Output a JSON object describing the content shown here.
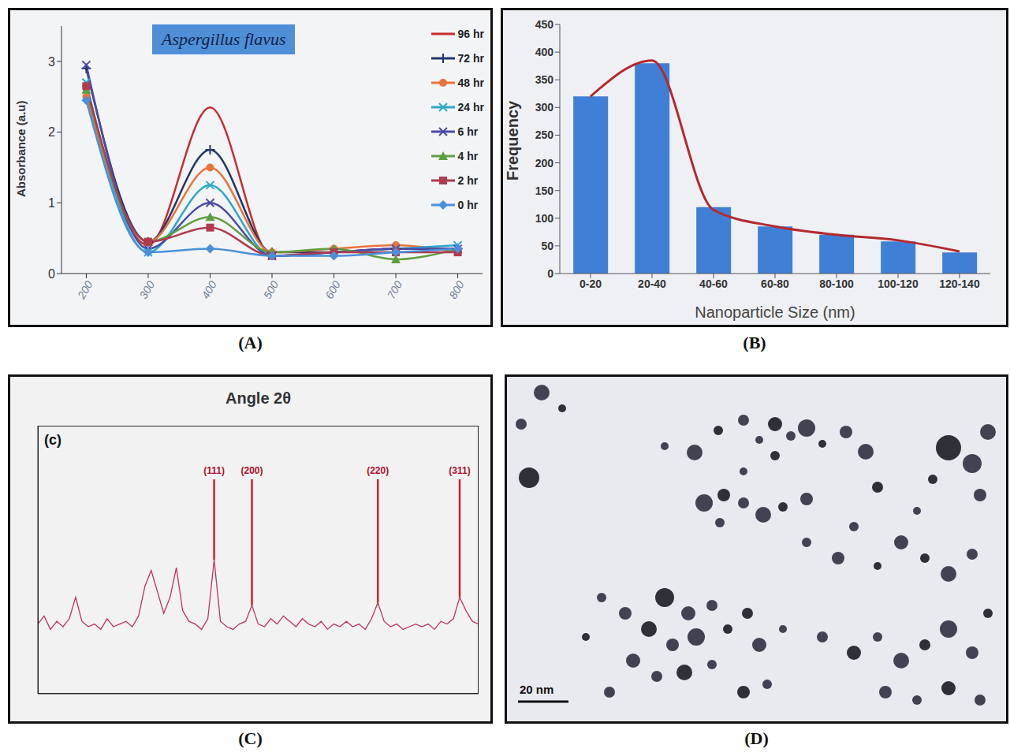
{
  "chart_data": [
    {
      "panel": "(A)",
      "type": "line",
      "title": "Aspergillus flavus",
      "ylabel": "Absorbance (a.u)",
      "x": [
        200,
        300,
        400,
        500,
        600,
        700,
        800
      ],
      "xlim": [
        160,
        840
      ],
      "xticks": [
        200,
        300,
        400,
        500,
        600,
        700,
        800
      ],
      "ylim": [
        0,
        3.5
      ],
      "yticks": [
        0,
        1,
        2,
        3
      ],
      "legend": "upper right",
      "series": [
        {
          "name": "96 hr",
          "color": "#c62f2f",
          "marker": "none",
          "values": [
            2.55,
            0.4,
            2.35,
            0.25,
            0.3,
            0.35,
            0.35
          ]
        },
        {
          "name": "72 hr",
          "color": "#22366b",
          "marker": "plus",
          "values": [
            2.9,
            0.45,
            1.75,
            0.3,
            0.3,
            0.35,
            0.35
          ]
        },
        {
          "name": "48 hr",
          "color": "#e8743b",
          "marker": "circle",
          "values": [
            2.5,
            0.45,
            1.5,
            0.3,
            0.35,
            0.4,
            0.3
          ]
        },
        {
          "name": "24 hr",
          "color": "#2ea7c9",
          "marker": "x",
          "values": [
            2.7,
            0.3,
            1.25,
            0.25,
            0.3,
            0.35,
            0.4
          ]
        },
        {
          "name": "6 hr",
          "color": "#4b4ba8",
          "marker": "x",
          "values": [
            2.95,
            0.35,
            1.0,
            0.25,
            0.3,
            0.35,
            0.35
          ]
        },
        {
          "name": "4 hr",
          "color": "#5f9e3f",
          "marker": "triangle",
          "values": [
            2.6,
            0.45,
            0.8,
            0.3,
            0.35,
            0.2,
            0.35
          ]
        },
        {
          "name": "2 hr",
          "color": "#b03a4e",
          "marker": "square",
          "values": [
            2.65,
            0.45,
            0.65,
            0.25,
            0.3,
            0.3,
            0.3
          ]
        },
        {
          "name": "0 hr",
          "color": "#4a90d9",
          "marker": "diamond",
          "values": [
            2.45,
            0.3,
            0.35,
            0.25,
            0.25,
            0.3,
            0.35
          ]
        }
      ]
    },
    {
      "panel": "(B)",
      "type": "bar",
      "xlabel": "Nanoparticle Size (nm)",
      "ylabel": "Frequency",
      "categories": [
        "0-20",
        "20-40",
        "40-60",
        "60-80",
        "80-100",
        "100-120",
        "120-140"
      ],
      "ylim": [
        0,
        450
      ],
      "yticks": [
        0,
        50,
        100,
        150,
        200,
        250,
        300,
        350,
        400,
        450
      ],
      "series": [
        {
          "type": "bar",
          "color": "#3f7fd6",
          "values": [
            320,
            380,
            120,
            85,
            70,
            58,
            38
          ]
        },
        {
          "type": "line",
          "color": "#b5282e",
          "values": [
            320,
            385,
            115,
            85,
            70,
            60,
            40
          ]
        }
      ]
    },
    {
      "panel": "(C)",
      "inner_label": "(c)",
      "type": "line",
      "title": "Angle 2θ",
      "tick_labels": false,
      "color": "#c2335d",
      "xlim": [
        10,
        80
      ],
      "ylim": [
        0,
        100
      ],
      "x": [
        10,
        11,
        12,
        13,
        14,
        15,
        16,
        17,
        18,
        19,
        20,
        21,
        22,
        23,
        24,
        25,
        26,
        27,
        28,
        29,
        30,
        31,
        32,
        33,
        34,
        35,
        36,
        37,
        38,
        39,
        40,
        41,
        42,
        43,
        44,
        45,
        46,
        47,
        48,
        49,
        50,
        51,
        52,
        53,
        54,
        55,
        56,
        57,
        58,
        59,
        60,
        61,
        62,
        63,
        64,
        65,
        66,
        67,
        68,
        69,
        70,
        71,
        72,
        73,
        74,
        75,
        76,
        77,
        78,
        79,
        80
      ],
      "values": [
        26,
        29,
        24,
        27,
        25,
        28,
        36,
        27,
        25,
        26,
        24,
        28,
        25,
        26,
        27,
        25,
        29,
        40,
        46,
        38,
        30,
        36,
        47,
        31,
        27,
        26,
        24,
        28,
        50,
        27,
        25,
        24,
        26,
        27,
        33,
        26,
        25,
        28,
        26,
        29,
        27,
        25,
        28,
        26,
        25,
        27,
        24,
        26,
        25,
        27,
        25,
        26,
        24,
        28,
        34,
        27,
        25,
        26,
        24,
        25,
        26,
        25,
        26,
        24,
        27,
        26,
        28,
        36,
        31,
        27,
        26
      ],
      "annotations": [
        {
          "x": 38,
          "text": "(111)"
        },
        {
          "x": 44,
          "text": "(200)"
        },
        {
          "x": 64,
          "text": "(220)"
        },
        {
          "x": 77,
          "text": "(311)"
        }
      ]
    }
  ],
  "image": {
    "panel": "(D)",
    "scale_bar": "20 nm"
  }
}
